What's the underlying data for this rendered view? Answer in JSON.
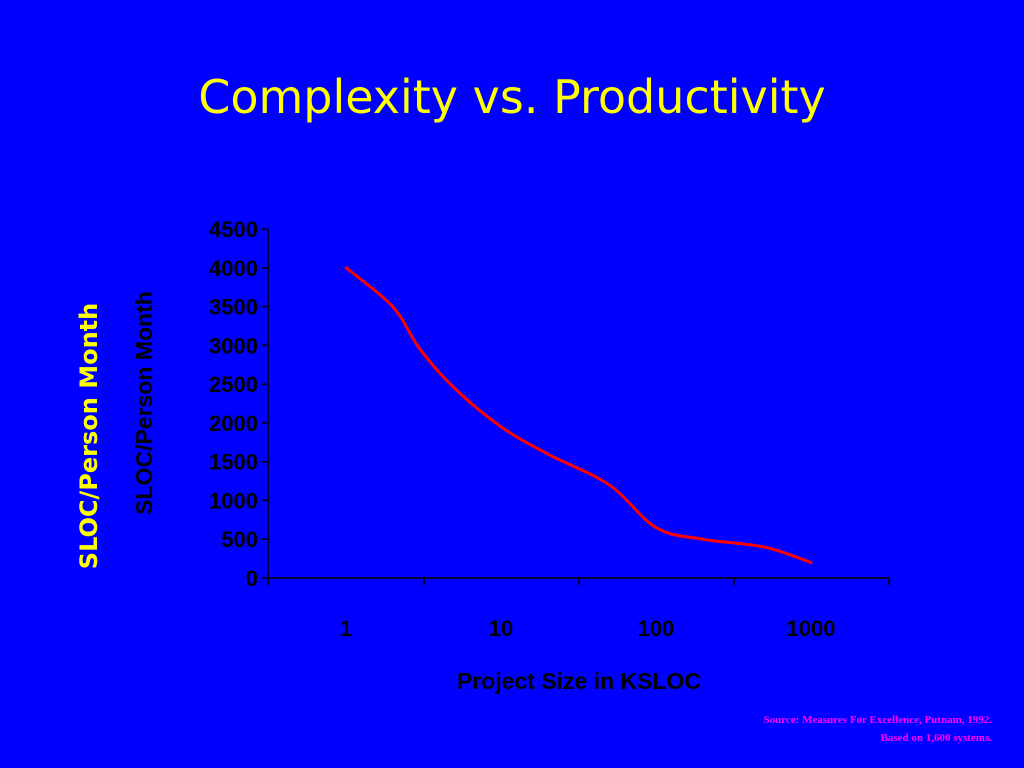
{
  "slide": {
    "title": "Complexity vs. Productivity",
    "side_label": "SLOC/Person Month",
    "source_line1": "Source: Measures For Excellence, Putnam, 1992.",
    "source_line2": "Based on 1,600 systems."
  },
  "colors": {
    "background": "#0000ff",
    "title": "#ffff00",
    "axis_text": "#000000",
    "series_line": "#ff0000",
    "source_text": "#ff00ff"
  },
  "chart_data": {
    "type": "line",
    "title": "",
    "xlabel": "Project Size in KSLOC",
    "ylabel": "SLOC/Person Month",
    "x_scale": "log",
    "x_ticks": [
      1,
      10,
      100,
      1000
    ],
    "x_tick_labels": [
      "1",
      "10",
      "100",
      "1000"
    ],
    "y_ticks": [
      0,
      500,
      1000,
      1500,
      2000,
      2500,
      3000,
      3500,
      4000,
      4500
    ],
    "y_tick_labels": [
      "0",
      "500",
      "1000",
      "1500",
      "2000",
      "2500",
      "3000",
      "3500",
      "4000",
      "4500"
    ],
    "ylim": [
      0,
      4500
    ],
    "grid": false,
    "legend": "none",
    "series": [
      {
        "x": [
          1,
          2,
          3,
          5,
          10,
          20,
          50,
          100,
          200,
          500,
          1000
        ],
        "y": [
          4000,
          3500,
          2950,
          2450,
          1950,
          1600,
          1200,
          650,
          500,
          400,
          200
        ]
      }
    ]
  }
}
